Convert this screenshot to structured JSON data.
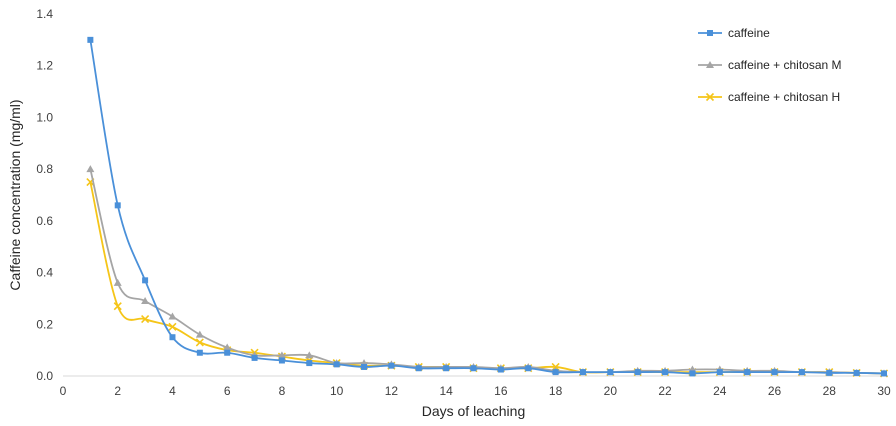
{
  "chart_data": {
    "type": "line",
    "xlabel": "Days of leaching",
    "ylabel": "Caffeine concentration (mg/ml)",
    "xlim": [
      0,
      30
    ],
    "ylim": [
      0,
      1.4
    ],
    "x_ticks": [
      "0",
      "2",
      "4",
      "6",
      "8",
      "10",
      "12",
      "14",
      "16",
      "18",
      "20",
      "22",
      "24",
      "26",
      "28",
      "30"
    ],
    "y_ticks": [
      "0.0",
      "0.2",
      "0.4",
      "0.6",
      "0.8",
      "1.0",
      "1.2",
      "1.4"
    ],
    "grid": false,
    "legend_position": "top-right",
    "x": [
      1,
      2,
      3,
      4,
      5,
      6,
      7,
      8,
      9,
      10,
      11,
      12,
      13,
      14,
      15,
      16,
      17,
      18,
      19,
      20,
      21,
      22,
      23,
      24,
      25,
      26,
      27,
      28,
      29,
      30
    ],
    "series": [
      {
        "name": "caffeine",
        "color": "#4A90D9",
        "marker": "square",
        "values": [
          1.3,
          0.66,
          0.37,
          0.15,
          0.09,
          0.09,
          0.07,
          0.06,
          0.05,
          0.045,
          0.035,
          0.04,
          0.03,
          0.03,
          0.03,
          0.025,
          0.03,
          0.015,
          0.015,
          0.015,
          0.015,
          0.015,
          0.01,
          0.015,
          0.015,
          0.015,
          0.015,
          0.012,
          0.012,
          0.01
        ]
      },
      {
        "name": "caffeine + chitosan M",
        "color": "#A5A5A5",
        "marker": "triangle",
        "values": [
          0.8,
          0.36,
          0.29,
          0.23,
          0.16,
          0.11,
          0.08,
          0.08,
          0.08,
          0.05,
          0.05,
          0.045,
          0.035,
          0.035,
          0.035,
          0.03,
          0.035,
          0.02,
          0.015,
          0.015,
          0.02,
          0.02,
          0.025,
          0.025,
          0.02,
          0.02,
          0.015,
          0.015,
          0.012,
          0.01
        ]
      },
      {
        "name": "caffeine + chitosan H",
        "color": "#F5C518",
        "marker": "x",
        "values": [
          0.75,
          0.27,
          0.22,
          0.19,
          0.13,
          0.1,
          0.09,
          0.075,
          0.06,
          0.05,
          0.04,
          0.04,
          0.035,
          0.035,
          0.03,
          0.03,
          0.03,
          0.035,
          0.015,
          0.015,
          0.015,
          0.015,
          0.015,
          0.015,
          0.015,
          0.015,
          0.015,
          0.015,
          0.012,
          0.01
        ]
      }
    ]
  }
}
